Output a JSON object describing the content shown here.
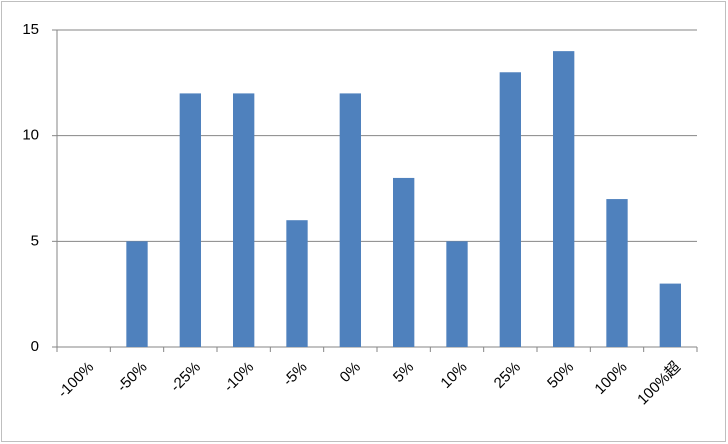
{
  "chart_data": {
    "type": "bar",
    "categories": [
      "-100%",
      "-50%",
      "-25%",
      "-10%",
      "-5%",
      "0%",
      "5%",
      "10%",
      "25%",
      "50%",
      "100%",
      "100%超"
    ],
    "values": [
      0,
      5,
      12,
      12,
      6,
      12,
      8,
      5,
      13,
      14,
      7,
      3
    ],
    "color": "#4f81bd",
    "ylim": [
      0,
      15
    ],
    "yticks": [
      0,
      5,
      10,
      15
    ],
    "grid": true
  }
}
